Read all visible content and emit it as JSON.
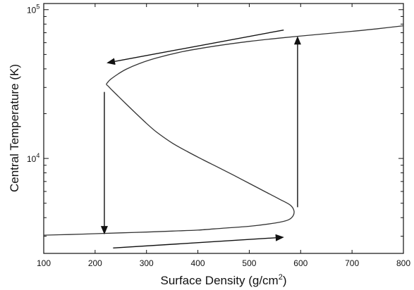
{
  "chart_data": {
    "type": "line",
    "title": "",
    "xlabel": "Surface Density (g/cm",
    "xlabel_sup": "2",
    "xlabel_close": ")",
    "ylabel": "Central Temperature (K)",
    "xlim": [
      100,
      800
    ],
    "ylim": [
      2300,
      110000
    ],
    "y_scale": "log",
    "grid": false,
    "x_ticks": [
      100,
      200,
      300,
      400,
      500,
      600,
      700,
      800
    ],
    "x_tick_labels": [
      "100",
      "200",
      "300",
      "400",
      "500",
      "600",
      "700",
      "800"
    ],
    "y_major_ticks": [
      {
        "value": 10000,
        "base": "10",
        "exp": "4"
      },
      {
        "value": 100000,
        "base": "10",
        "exp": "5"
      }
    ],
    "y_minor_ticks": [
      3000,
      4000,
      5000,
      6000,
      7000,
      8000,
      9000,
      20000,
      30000,
      40000,
      50000,
      60000,
      70000,
      80000,
      90000
    ],
    "series": [
      {
        "x": [
          100,
          150,
          200,
          250,
          300,
          350,
          400,
          450,
          500,
          550,
          575,
          585,
          587,
          580,
          560,
          530,
          500,
          470,
          440,
          410,
          380,
          350,
          320,
          300,
          280,
          260,
          245,
          232,
          225,
          222,
          224,
          230,
          245,
          260,
          285,
          320,
          370,
          430,
          500,
          570,
          640,
          700,
          750,
          800
        ],
        "y": [
          3050,
          3080,
          3120,
          3160,
          3200,
          3250,
          3300,
          3400,
          3500,
          3680,
          3850,
          4100,
          4450,
          4850,
          5300,
          6000,
          6800,
          7700,
          8700,
          9800,
          11100,
          12700,
          15000,
          17200,
          20000,
          23300,
          26200,
          29000,
          30700,
          31500,
          32300,
          34000,
          37000,
          39700,
          43300,
          47400,
          52200,
          56700,
          61200,
          65000,
          68500,
          71500,
          74500,
          78000
        ]
      }
    ],
    "annotations": [
      {
        "type": "arrow",
        "from": {
          "x": 567,
          "y": 73000
        },
        "to": {
          "x": 225,
          "y": 44000
        }
      },
      {
        "type": "arrow",
        "from": {
          "x": 218,
          "y": 28000
        },
        "to": {
          "x": 218,
          "y": 3150
        }
      },
      {
        "type": "arrow",
        "from": {
          "x": 235,
          "y": 2500
        },
        "to": {
          "x": 565,
          "y": 2950
        }
      },
      {
        "type": "arrow",
        "from": {
          "x": 594,
          "y": 4700
        },
        "to": {
          "x": 594,
          "y": 65000
        }
      }
    ]
  }
}
